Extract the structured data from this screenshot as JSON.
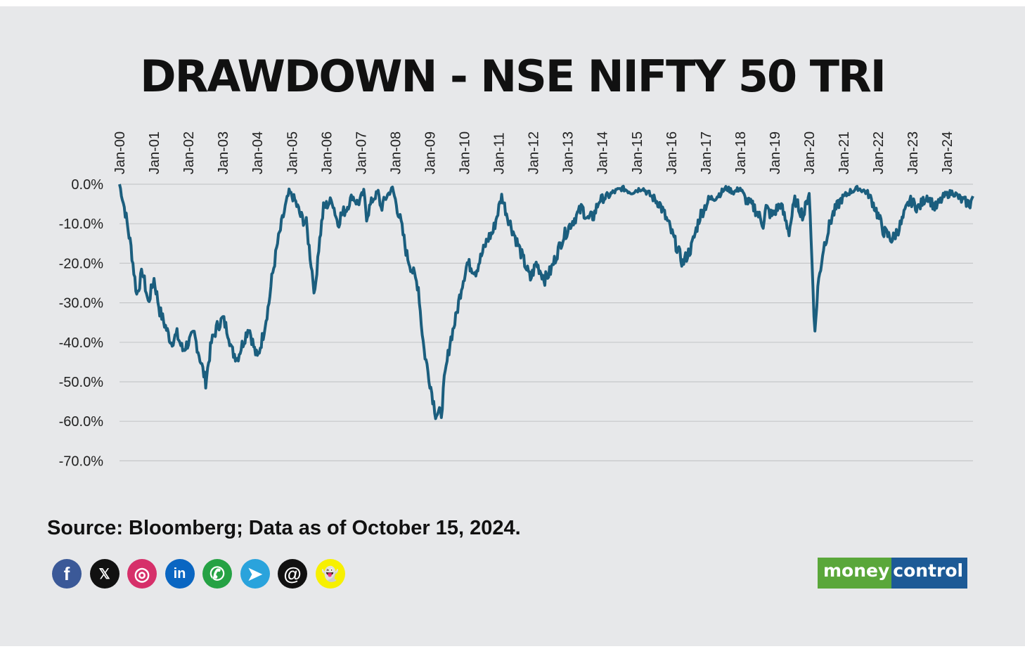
{
  "title": "DRAWDOWN - NSE NIFTY 50 TRI",
  "source": "Source: Bloomberg; Data as of October 15, 2024.",
  "colors": {
    "line": "#1b5e7e",
    "grid": "#c6c7c9",
    "background": "#e7e8ea"
  },
  "social": [
    {
      "name": "facebook-icon",
      "glyph": "f",
      "color": "#3b5998"
    },
    {
      "name": "x-icon",
      "glyph": "𝕏",
      "color": "#111111"
    },
    {
      "name": "instagram-icon",
      "glyph": "◎",
      "color": "#d6306a"
    },
    {
      "name": "linkedin-icon",
      "glyph": "in",
      "color": "#0a66c2"
    },
    {
      "name": "whatsapp-icon",
      "glyph": "✆",
      "color": "#25a244"
    },
    {
      "name": "telegram-icon",
      "glyph": "➤",
      "color": "#2aa3dc"
    },
    {
      "name": "threads-icon",
      "glyph": "@",
      "color": "#111111"
    },
    {
      "name": "snapchat-icon",
      "glyph": "👻",
      "color": "#f7f000"
    }
  ],
  "logo": {
    "part1": "money",
    "part2": "control"
  },
  "chart_data": {
    "type": "area",
    "ylim": [
      -70,
      0
    ],
    "y_ticks": [
      0,
      -10,
      -20,
      -30,
      -40,
      -50,
      -60,
      -70
    ],
    "y_tick_labels": [
      "0.0%",
      "-10.0%",
      "-20.0%",
      "-30.0%",
      "-40.0%",
      "-50.0%",
      "-60.0%",
      "-70.0%"
    ],
    "x_tick_labels": [
      "Jan-00",
      "Jan-01",
      "Jan-02",
      "Jan-03",
      "Jan-04",
      "Jan-05",
      "Jan-06",
      "Jan-07",
      "Jan-08",
      "Jan-09",
      "Jan-10",
      "Jan-11",
      "Jan-12",
      "Jan-13",
      "Jan-14",
      "Jan-15",
      "Jan-16",
      "Jan-17",
      "Jan-18",
      "Jan-19",
      "Jan-20",
      "Jan-21",
      "Jan-22",
      "Jan-23",
      "Jan-24"
    ],
    "x_start": "2000-01",
    "x_end": "2024-10",
    "grid": true,
    "series": [
      {
        "x": [
          "2000-01",
          "2000-03",
          "2000-05",
          "2000-07",
          "2000-09",
          "2000-11",
          "2001-01",
          "2001-03",
          "2001-05",
          "2001-07",
          "2001-09",
          "2001-11",
          "2002-01",
          "2002-03",
          "2002-05",
          "2002-07",
          "2002-09",
          "2002-11",
          "2003-01",
          "2003-03",
          "2003-04",
          "2003-06",
          "2003-08",
          "2003-10",
          "2003-12",
          "2004-01",
          "2004-03",
          "2004-05",
          "2004-06",
          "2004-08",
          "2004-10",
          "2004-12",
          "2005-02",
          "2005-04",
          "2005-06",
          "2005-09",
          "2005-10",
          "2005-12",
          "2006-03",
          "2006-05",
          "2006-06",
          "2006-08",
          "2006-10",
          "2006-12",
          "2007-02",
          "2007-03",
          "2007-05",
          "2007-07",
          "2007-08",
          "2007-10",
          "2007-12",
          "2008-01",
          "2008-03",
          "2008-05",
          "2008-07",
          "2008-09",
          "2008-10",
          "2008-11",
          "2009-01",
          "2009-03",
          "2009-05",
          "2009-06",
          "2009-08",
          "2009-10",
          "2009-12",
          "2010-02",
          "2010-05",
          "2010-07",
          "2010-09",
          "2010-11",
          "2011-02",
          "2011-04",
          "2011-06",
          "2011-08",
          "2011-10",
          "2011-12",
          "2012-02",
          "2012-05",
          "2012-07",
          "2012-09",
          "2012-11",
          "2013-02",
          "2013-04",
          "2013-06",
          "2013-08",
          "2013-10",
          "2013-12",
          "2014-03",
          "2014-05",
          "2014-08",
          "2014-11",
          "2015-03",
          "2015-06",
          "2015-09",
          "2015-12",
          "2016-02",
          "2016-05",
          "2016-08",
          "2016-11",
          "2017-02",
          "2017-05",
          "2017-08",
          "2017-11",
          "2018-01",
          "2018-03",
          "2018-06",
          "2018-09",
          "2018-10",
          "2018-12",
          "2019-03",
          "2019-06",
          "2019-08",
          "2019-11",
          "2020-01",
          "2020-03",
          "2020-04",
          "2020-06",
          "2020-09",
          "2020-12",
          "2021-03",
          "2021-06",
          "2021-09",
          "2021-10",
          "2021-12",
          "2022-03",
          "2022-06",
          "2022-09",
          "2022-12",
          "2023-03",
          "2023-06",
          "2023-09",
          "2023-12",
          "2024-03",
          "2024-06",
          "2024-09",
          "2024-10"
        ],
        "values": [
          0,
          -7,
          -16,
          -28,
          -22,
          -30,
          -24,
          -32,
          -36,
          -40,
          -38,
          -42,
          -40,
          -38,
          -44,
          -50,
          -40,
          -36,
          -34,
          -38,
          -42,
          -44,
          -40,
          -36,
          -42,
          -44,
          -38,
          -30,
          -24,
          -15,
          -8,
          -2,
          -4,
          -8,
          -10,
          -28,
          -18,
          -6,
          -4,
          -10,
          -8,
          -6,
          -3,
          -5,
          -2,
          -8,
          -4,
          -2,
          -6,
          -3,
          -1,
          -4,
          -10,
          -18,
          -22,
          -26,
          -35,
          -42,
          -50,
          -58,
          -58,
          -50,
          -40,
          -34,
          -26,
          -20,
          -22,
          -18,
          -14,
          -12,
          -3,
          -8,
          -12,
          -16,
          -20,
          -24,
          -20,
          -24,
          -22,
          -18,
          -14,
          -10,
          -8,
          -6,
          -9,
          -8,
          -4,
          -3,
          -2,
          -1,
          -2,
          -1,
          -3,
          -5,
          -10,
          -14,
          -20,
          -16,
          -8,
          -4,
          -3,
          -1,
          -2,
          -1,
          -4,
          -6,
          -10,
          -6,
          -8,
          -5,
          -12,
          -4,
          -8,
          -2,
          -38,
          -26,
          -16,
          -8,
          -4,
          -2,
          -1,
          -2,
          -3,
          -6,
          -12,
          -14,
          -10,
          -4,
          -6,
          -3,
          -6,
          -3,
          -2,
          -4,
          -5,
          -3
        ]
      }
    ]
  }
}
